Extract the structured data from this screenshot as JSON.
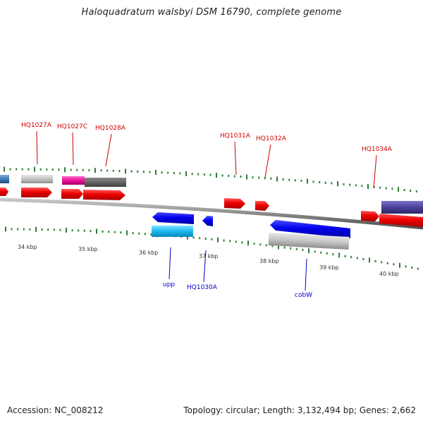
{
  "title": "Haloquadratum walsbyi DSM 16790, complete genome",
  "footer": {
    "accession": "Accession: NC_008212",
    "summary": "Topology: circular; Length: 3,132,494 bp; Genes: 2,662"
  },
  "colors": {
    "forward_label": "#cc0000",
    "reverse_label": "#0000cc",
    "backbone": "#808080",
    "tick": "#2e7d32"
  },
  "scale_labels": [
    "34 kbp",
    "35 kbp",
    "36 kbp",
    "37 kbp",
    "38 kbp",
    "39 kbp",
    "40 kbp"
  ],
  "gene_labels": {
    "top": [
      "HQ1027A",
      "HQ1027C",
      "HQ1028A",
      "HQ1031A",
      "HQ1032A",
      "HQ1034A"
    ],
    "bottom": [
      "upp",
      "HQ1030A",
      "cobW"
    ]
  }
}
